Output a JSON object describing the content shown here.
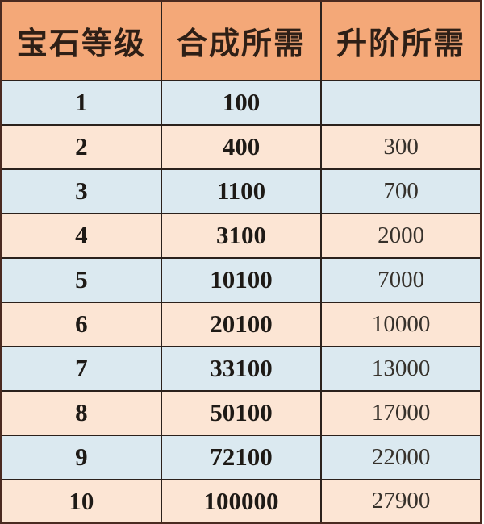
{
  "table": {
    "title": "gem-upgrade-cost-table",
    "headers": [
      "宝石等级",
      "合成所需",
      "升阶所需"
    ],
    "rows": [
      {
        "level": "1",
        "synthesis": "100",
        "upgrade": ""
      },
      {
        "level": "2",
        "synthesis": "400",
        "upgrade": "300"
      },
      {
        "level": "3",
        "synthesis": "1100",
        "upgrade": "700"
      },
      {
        "level": "4",
        "synthesis": "3100",
        "upgrade": "2000"
      },
      {
        "level": "5",
        "synthesis": "10100",
        "upgrade": "7000"
      },
      {
        "level": "6",
        "synthesis": "20100",
        "upgrade": "10000"
      },
      {
        "level": "7",
        "synthesis": "33100",
        "upgrade": "13000"
      },
      {
        "level": "8",
        "synthesis": "50100",
        "upgrade": "17000"
      },
      {
        "level": "9",
        "synthesis": "72100",
        "upgrade": "22000"
      },
      {
        "level": "10",
        "synthesis": "100000",
        "upgrade": "27900"
      }
    ],
    "colors": {
      "header_bg": "#f4a878",
      "row_blue_bg": "#dbe9f0",
      "row_peach_bg": "#fce5d4",
      "inner_border": "#2b211c",
      "outer_border": "#4a2a20",
      "header_text": "#2e1f16",
      "cell_text": "#1e1a16",
      "upgrade_text": "#36312b"
    }
  }
}
